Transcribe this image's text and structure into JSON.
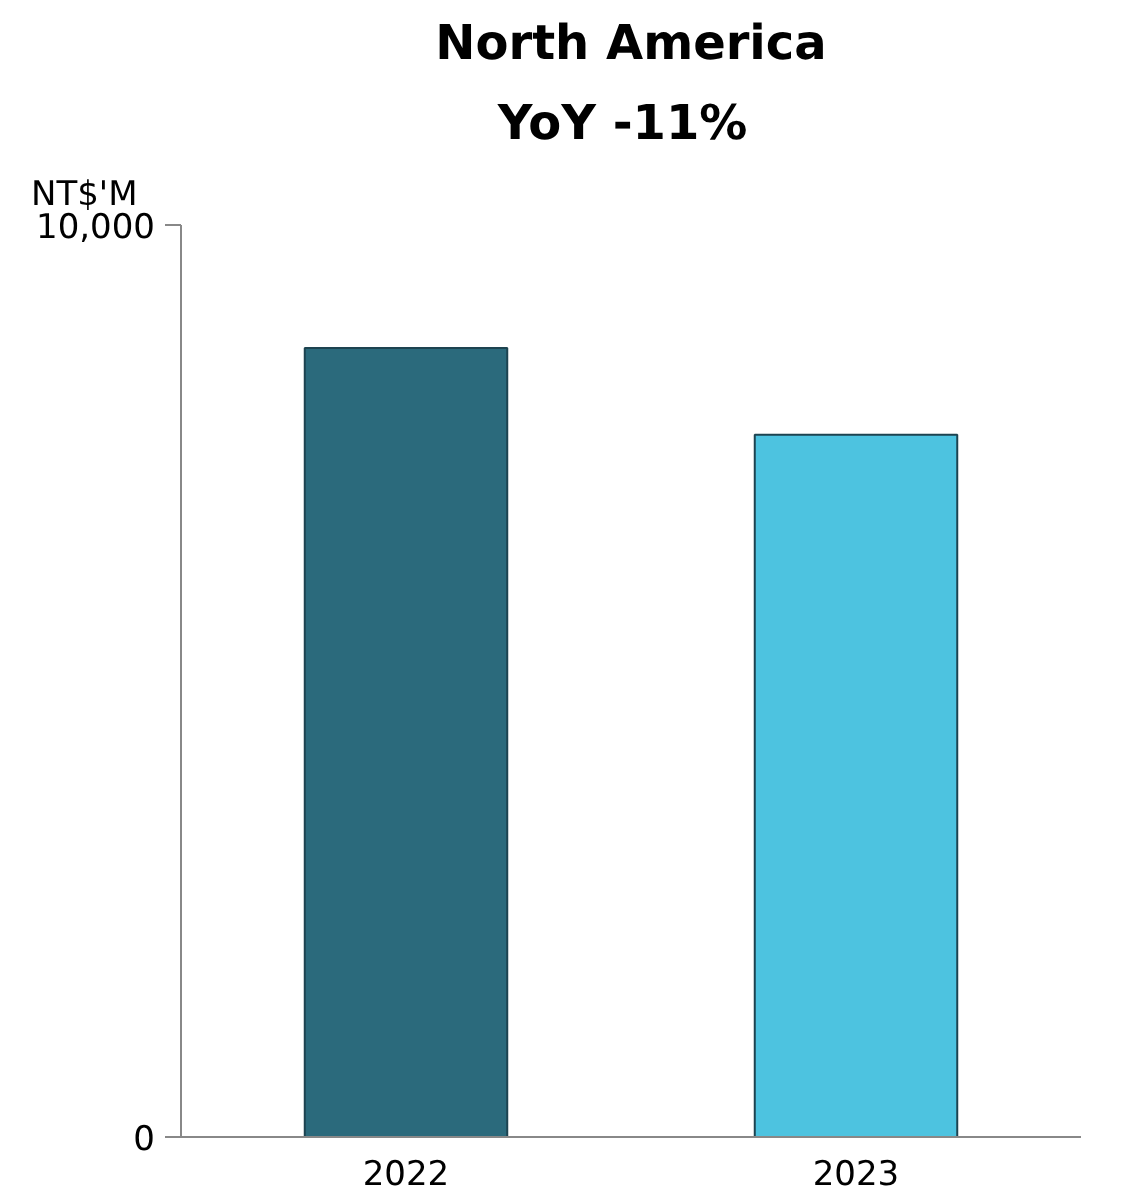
{
  "chart_data": {
    "type": "bar",
    "title": "North America",
    "subtitle": "YoY  -11%",
    "ylabel": "NT$'M",
    "categories": [
      "2022",
      "2023"
    ],
    "values": [
      8650,
      7700
    ],
    "colors": [
      "#2b6a7c",
      "#4dc3e0"
    ],
    "ylim": [
      0,
      10000
    ],
    "yticks": [
      0,
      {
        "value": 10000,
        "label": "10,000"
      }
    ],
    "grid": false
  }
}
